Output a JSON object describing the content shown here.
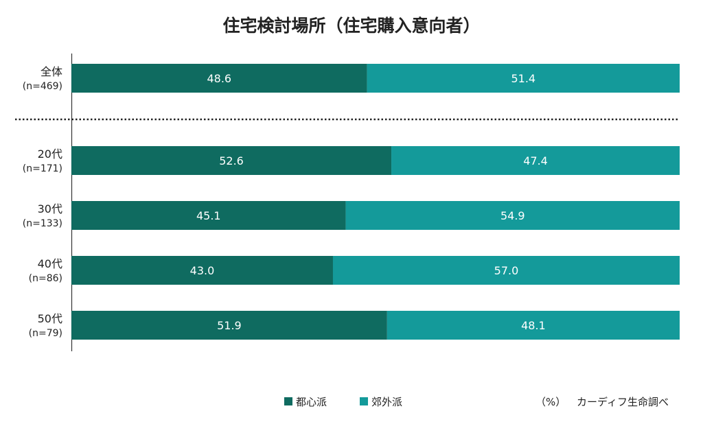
{
  "chart_data": {
    "type": "bar",
    "orientation": "horizontal",
    "stacked": true,
    "percent": true,
    "title": "住宅検討場所（住宅購入意向者）",
    "categories": [
      {
        "label": "全体",
        "sub": "(n=469)"
      },
      {
        "label": "20代",
        "sub": "(n=171)"
      },
      {
        "label": "30代",
        "sub": "(n=133)"
      },
      {
        "label": "40代",
        "sub": "(n=86)"
      },
      {
        "label": "50代",
        "sub": "(n=79)"
      }
    ],
    "series": [
      {
        "name": "都心派",
        "color": "#0f6b60",
        "values": [
          48.6,
          52.6,
          45.1,
          43.0,
          51.9
        ]
      },
      {
        "name": "郊外派",
        "color": "#149a9a",
        "values": [
          51.4,
          47.4,
          54.9,
          57.0,
          48.1
        ]
      }
    ],
    "xlim": [
      0,
      100
    ],
    "separator_after_first": true,
    "legend_position": "bottom-center",
    "unit_note": "（%）",
    "source": "カーディフ生命調べ"
  }
}
